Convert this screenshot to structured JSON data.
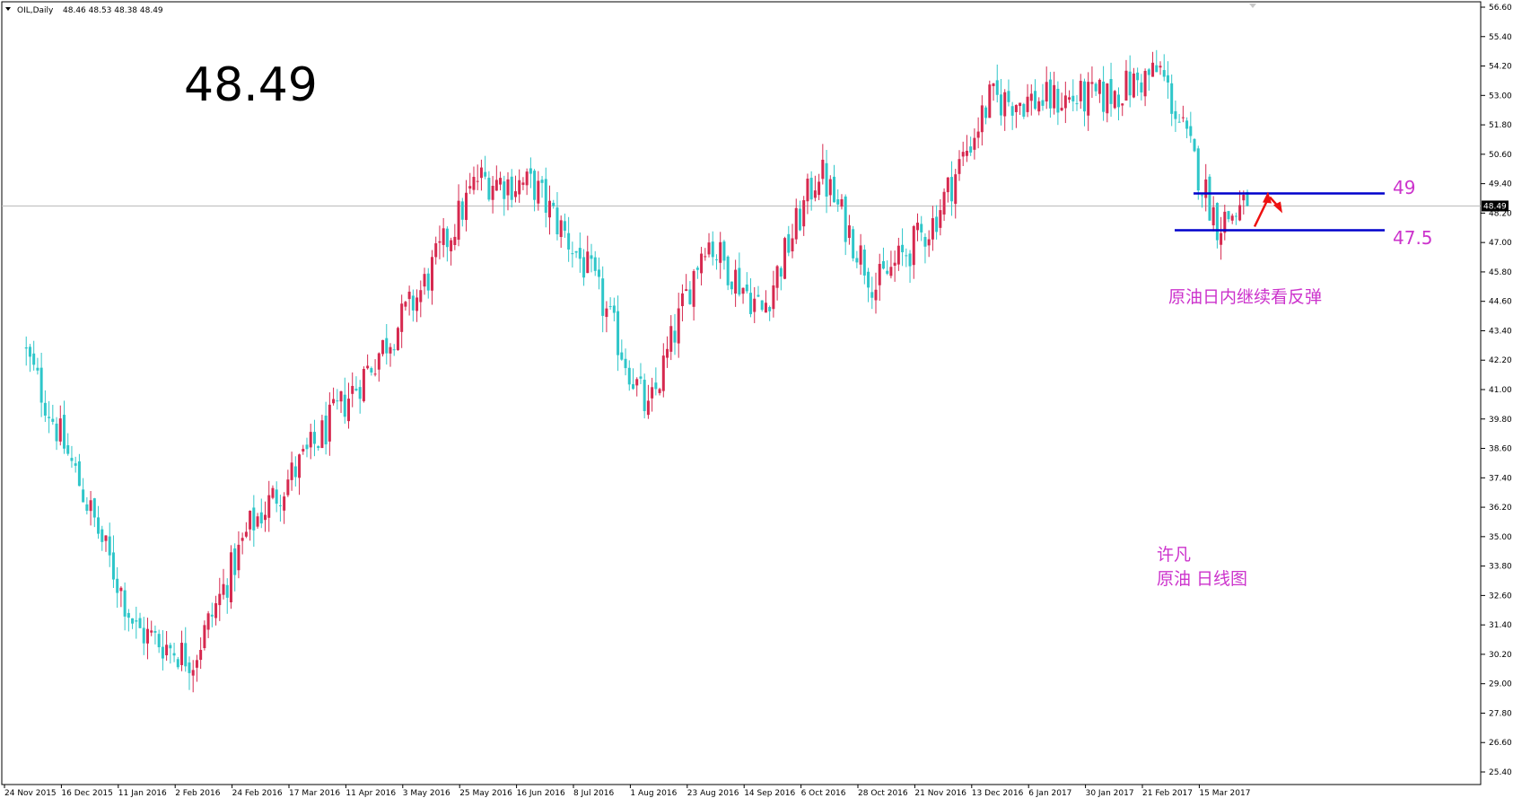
{
  "header": {
    "symbol_label": "OIL,Daily",
    "ohlc_label": "48.46 48.53 48.38 48.49",
    "big_price": "48.49"
  },
  "annotations": {
    "level_upper_label": "49",
    "level_lower_label": "47.5",
    "comment": "原油日内继续看反弹",
    "author": "许凡",
    "chart_caption": "原油 日线图"
  },
  "price_tag": "48.49",
  "colors": {
    "bull": "#d6294f",
    "bear": "#2ec6c9",
    "level_line": "#0000cc",
    "annotation_text": "#cc33cc",
    "arrow": "#ee1111",
    "current_price_line": "#bbbbbb"
  },
  "chart_data": {
    "type": "candlestick",
    "symbol": "OIL",
    "timeframe": "Daily",
    "ylim": [
      25.4,
      56.6
    ],
    "y_ticks": [
      "56.60",
      "55.40",
      "54.20",
      "53.00",
      "51.80",
      "50.60",
      "49.40",
      "48.20",
      "47.00",
      "45.80",
      "44.60",
      "43.40",
      "42.20",
      "41.00",
      "39.80",
      "38.60",
      "37.40",
      "36.20",
      "35.00",
      "33.80",
      "32.60",
      "31.40",
      "30.20",
      "29.00",
      "27.80",
      "26.60",
      "25.40"
    ],
    "x_labels": [
      "24 Nov 2015",
      "16 Dec 2015",
      "11 Jan 2016",
      "2 Feb 2016",
      "24 Feb 2016",
      "17 Mar 2016",
      "11 Apr 2016",
      "3 May 2016",
      "25 May 2016",
      "16 Jun 2016",
      "8 Jul 2016",
      "1 Aug 2016",
      "23 Aug 2016",
      "14 Sep 2016",
      "6 Oct 2016",
      "28 Oct 2016",
      "21 Nov 2016",
      "13 Dec 2016",
      "6 Jan 2017",
      "30 Jan 2017",
      "21 Feb 2017",
      "15 Mar 2017"
    ],
    "last_ohlc": {
      "open": 48.46,
      "high": 48.53,
      "low": 48.38,
      "close": 48.49
    },
    "current_price": 48.49,
    "horizontal_levels": [
      49.0,
      47.5
    ],
    "close_path": [
      {
        "x": "24 Nov 2015",
        "close": 42.8
      },
      {
        "x": "16 Dec 2015",
        "close": 37.2
      },
      {
        "x": "11 Jan 2016",
        "close": 31.2
      },
      {
        "x": "2 Feb 2016",
        "close": 30.0
      },
      {
        "x": "24 Feb 2016",
        "close": 35.4
      },
      {
        "x": "17 Mar 2016",
        "close": 38.3
      },
      {
        "x": "11 Apr 2016",
        "close": 41.6
      },
      {
        "x": "3 May 2016",
        "close": 45.0
      },
      {
        "x": "25 May 2016",
        "close": 49.6
      },
      {
        "x": "16 Jun 2016",
        "close": 49.3
      },
      {
        "x": "8 Jul 2016",
        "close": 45.6
      },
      {
        "x": "1 Aug 2016",
        "close": 40.0
      },
      {
        "x": "23 Aug 2016",
        "close": 47.2
      },
      {
        "x": "14 Sep 2016",
        "close": 44.2
      },
      {
        "x": "6 Oct 2016",
        "close": 50.0
      },
      {
        "x": "28 Oct 2016",
        "close": 45.2
      },
      {
        "x": "21 Nov 2016",
        "close": 47.8
      },
      {
        "x": "13 Dec 2016",
        "close": 52.8
      },
      {
        "x": "6 Jan 2017",
        "close": 52.8
      },
      {
        "x": "30 Jan 2017",
        "close": 52.9
      },
      {
        "x": "21 Feb 2017",
        "close": 54.0
      },
      {
        "x": "15 Mar 2017",
        "close": 47.8
      },
      {
        "x": "last",
        "close": 48.49
      }
    ]
  }
}
